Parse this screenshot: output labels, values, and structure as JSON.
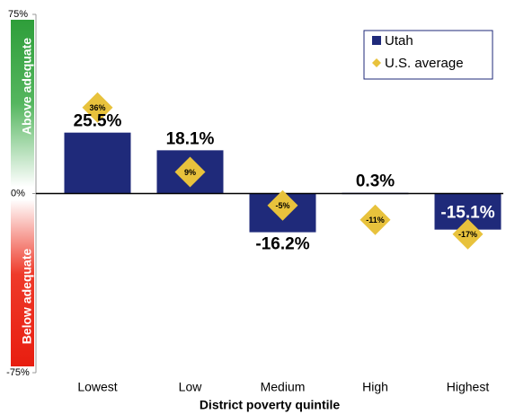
{
  "chart_data": {
    "type": "bar",
    "categories": [
      "Lowest",
      "Low",
      "Medium",
      "High",
      "Highest"
    ],
    "series": [
      {
        "name": "Utah",
        "color": "#1f2a7a",
        "values": [
          25.5,
          18.1,
          -16.2,
          0.3,
          -15.1
        ],
        "value_labels": [
          "25.5%",
          "18.1%",
          "-16.2%",
          "0.3%",
          "-15.1%"
        ]
      },
      {
        "name": "U.S. average",
        "color": "#e8c23c",
        "values": [
          36,
          9,
          -5,
          -11,
          -17
        ],
        "value_labels": [
          "36%",
          "9%",
          "-5%",
          "-11%",
          "-17%"
        ]
      }
    ],
    "x_label": "District poverty quintile",
    "annotations": [
      "Above adequate",
      "Below adequate"
    ],
    "ylim": [
      -75,
      75
    ],
    "yticks": [
      {
        "value": 75,
        "label": "75%"
      },
      {
        "value": 0,
        "label": "0%"
      },
      {
        "value": -75,
        "label": "-75%"
      }
    ],
    "legend": "upper right"
  }
}
